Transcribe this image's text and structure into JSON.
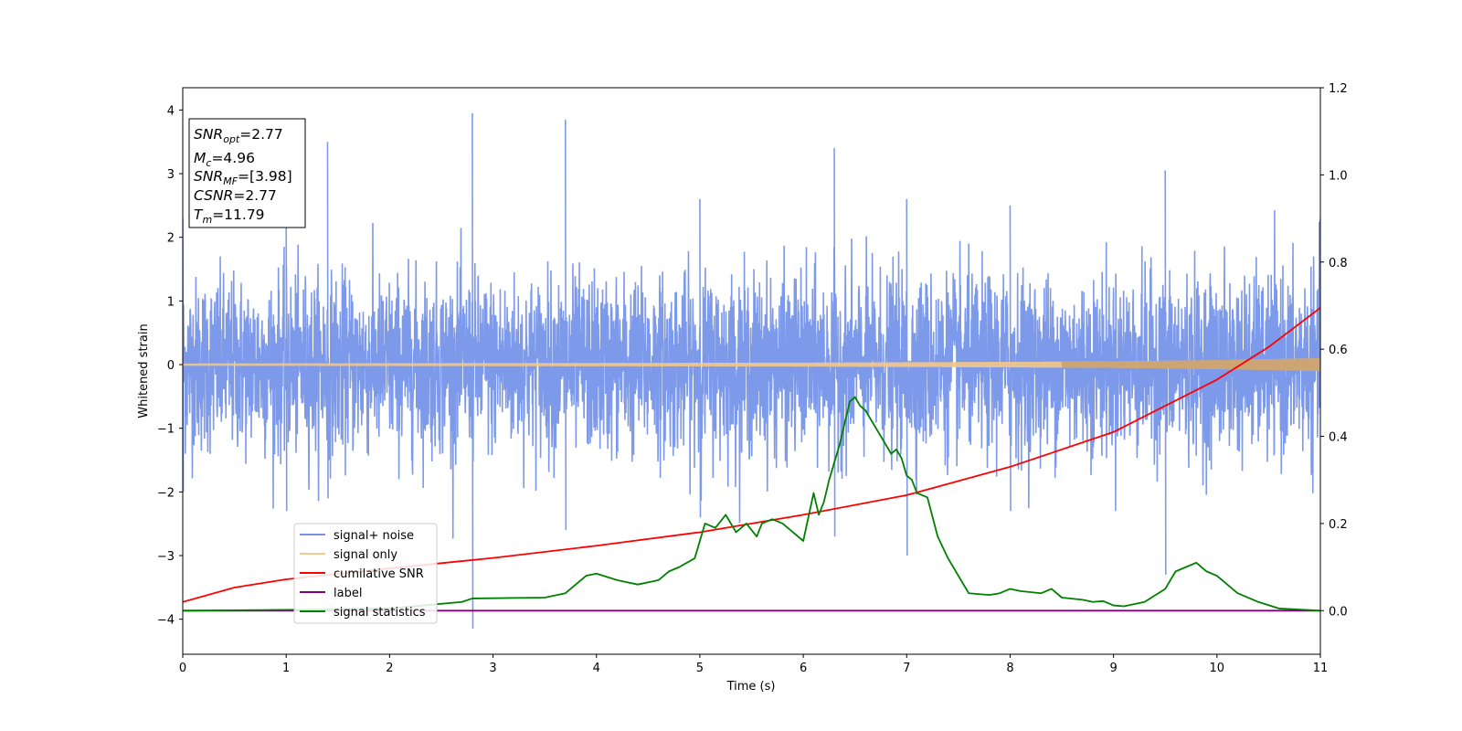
{
  "chart_data": {
    "type": "line",
    "xlabel": "Time (s)",
    "ylabel": "Whitened strain",
    "xlim": [
      0,
      11
    ],
    "ylim_left": [
      -4.55,
      4.35
    ],
    "ylim_right": [
      -0.1,
      1.2
    ],
    "x_ticks": [
      "0",
      "1",
      "2",
      "3",
      "4",
      "5",
      "6",
      "7",
      "8",
      "9",
      "10",
      "11"
    ],
    "y_ticks_left": [
      "4",
      "3",
      "2",
      "1",
      "0",
      "−1",
      "−2",
      "−3",
      "−4"
    ],
    "y_ticks_right": [
      "1.2",
      "1.0",
      "0.8",
      "0.6",
      "0.4",
      "0.2",
      "0.0"
    ],
    "annotation": {
      "snr_opt": {
        "base": "SNR",
        "sub": "opt",
        "rest": "=2.77"
      },
      "mc": {
        "base": "M",
        "sub": "c",
        "rest": "=4.96"
      },
      "snr_mf": {
        "base": "SNR",
        "sub": "MF",
        "rest": "=[3.98]"
      },
      "csnr": {
        "base": "CSNR",
        "rest": "=2.77"
      },
      "tm": {
        "base": "T",
        "sub": "m",
        "rest": "=11.79"
      }
    },
    "legend": {
      "position": "lower-left",
      "entries": [
        "signal+ noise",
        "signal only",
        "cumilative SNR",
        "label",
        "signal statistics"
      ]
    },
    "colors": {
      "noise": "#7693e8",
      "signal": "#f4c78a",
      "cumulative_snr": "#ff0000",
      "label": "#800080",
      "statistics": "#008000"
    },
    "series": [
      {
        "name": "signal+ noise",
        "axis": "left",
        "description_envelope": [
          [
            0.0,
            2.3,
            -2.0
          ],
          [
            1.0,
            2.5,
            -2.3
          ],
          [
            1.4,
            3.5,
            -2.1
          ],
          [
            2.8,
            3.95,
            -4.15
          ],
          [
            3.7,
            3.85,
            -2.6
          ],
          [
            5.0,
            2.6,
            -2.4
          ],
          [
            6.3,
            3.4,
            -2.7
          ],
          [
            7.0,
            2.6,
            -3.0
          ],
          [
            8.0,
            2.5,
            -2.3
          ],
          [
            9.5,
            3.05,
            -3.3
          ],
          [
            11.0,
            2.3,
            -2.0
          ]
        ]
      },
      {
        "name": "signal only",
        "axis": "left",
        "amplitude": [
          [
            0,
            0.015
          ],
          [
            6,
            0.03
          ],
          [
            9,
            0.05
          ],
          [
            10,
            0.07
          ],
          [
            11,
            0.1
          ]
        ]
      },
      {
        "name": "cumilative SNR",
        "axis": "right",
        "x": [
          0,
          0.5,
          1,
          2,
          3,
          4,
          5,
          6,
          7,
          8,
          9,
          10,
          10.5,
          11
        ],
        "y": [
          0.02,
          0.053,
          0.072,
          0.097,
          0.121,
          0.149,
          0.18,
          0.22,
          0.265,
          0.33,
          0.41,
          0.53,
          0.605,
          0.695
        ]
      },
      {
        "name": "label",
        "axis": "right",
        "x": [
          0,
          11
        ],
        "y": [
          0.0,
          0.0
        ]
      },
      {
        "name": "signal statistics",
        "axis": "right",
        "x": [
          0,
          1,
          2,
          2.7,
          2.8,
          3.5,
          3.7,
          3.8,
          3.9,
          4.0,
          4.2,
          4.4,
          4.6,
          4.7,
          4.8,
          4.95,
          5.05,
          5.15,
          5.25,
          5.35,
          5.45,
          5.55,
          5.6,
          5.7,
          5.8,
          5.9,
          6.0,
          6.1,
          6.15,
          6.2,
          6.25,
          6.35,
          6.45,
          6.5,
          6.55,
          6.6,
          6.7,
          6.8,
          6.85,
          6.9,
          6.95,
          7.0,
          7.05,
          7.1,
          7.2,
          7.3,
          7.4,
          7.6,
          7.8,
          7.9,
          8.0,
          8.1,
          8.3,
          8.4,
          8.5,
          8.7,
          8.8,
          8.9,
          9.0,
          9.1,
          9.3,
          9.5,
          9.6,
          9.7,
          9.8,
          9.9,
          10.0,
          10.1,
          10.2,
          10.4,
          10.6,
          11.0
        ],
        "y": [
          0.0,
          0.002,
          0.005,
          0.02,
          0.028,
          0.03,
          0.04,
          0.06,
          0.08,
          0.085,
          0.07,
          0.06,
          0.07,
          0.09,
          0.1,
          0.12,
          0.2,
          0.19,
          0.22,
          0.18,
          0.2,
          0.17,
          0.2,
          0.21,
          0.2,
          0.18,
          0.16,
          0.27,
          0.22,
          0.25,
          0.3,
          0.38,
          0.48,
          0.49,
          0.47,
          0.46,
          0.42,
          0.38,
          0.36,
          0.37,
          0.35,
          0.31,
          0.3,
          0.27,
          0.26,
          0.17,
          0.12,
          0.04,
          0.036,
          0.04,
          0.05,
          0.045,
          0.04,
          0.05,
          0.03,
          0.025,
          0.02,
          0.022,
          0.012,
          0.01,
          0.02,
          0.05,
          0.09,
          0.1,
          0.11,
          0.09,
          0.08,
          0.06,
          0.04,
          0.02,
          0.005,
          0.0
        ]
      }
    ]
  }
}
